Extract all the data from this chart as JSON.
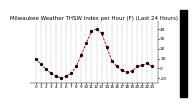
{
  "title": "Milwaukee Weather THSW Index per Hour (F) (Last 24 Hours)",
  "x_values": [
    0,
    1,
    2,
    3,
    4,
    5,
    6,
    7,
    8,
    9,
    10,
    11,
    12,
    13,
    14,
    15,
    16,
    17,
    18,
    19,
    20,
    21,
    22,
    23
  ],
  "y_values": [
    10,
    4,
    -1,
    -5,
    -8,
    -10,
    -8,
    -5,
    2,
    14,
    26,
    38,
    40,
    36,
    22,
    8,
    2,
    -2,
    -4,
    -3,
    2,
    3,
    5,
    2
  ],
  "line_color": "#dd0000",
  "marker_color": "#000000",
  "bg_color": "#ffffff",
  "plot_bg": "#ffffff",
  "ylim": [
    -15,
    48
  ],
  "ytick_values": [
    -10,
    0,
    10,
    20,
    30,
    40
  ],
  "x_tick_every": 1,
  "xlabel_fontsize": 3.0,
  "ylabel_fontsize": 3.2,
  "title_fontsize": 4.0,
  "grid_color": "#aaaaaa",
  "right_bar_color": "#000000",
  "line_width": 0.7,
  "marker_size": 1.8
}
